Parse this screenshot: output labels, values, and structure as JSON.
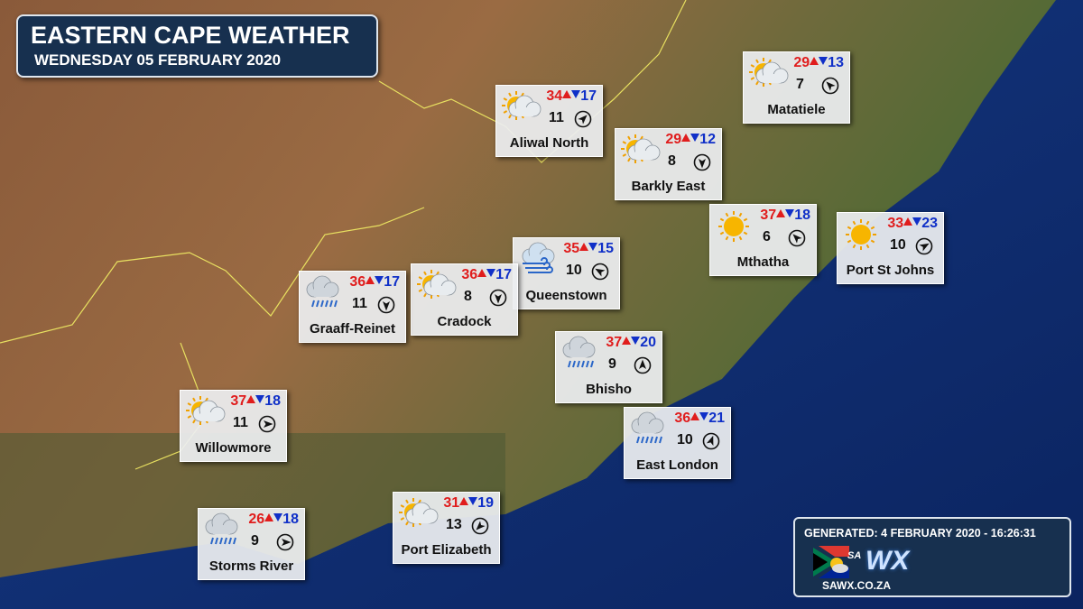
{
  "header": {
    "title": "EASTERN CAPE WEATHER",
    "date": "WEDNESDAY 05 FEBRUARY 2020"
  },
  "cards": [
    {
      "city": "Aliwal North",
      "max": 34,
      "min": 17,
      "wind": 11,
      "icon": "partly-cloudy",
      "wind_dir": 45
    },
    {
      "city": "Matatiele",
      "max": 29,
      "min": 13,
      "wind": 7,
      "icon": "partly-cloudy",
      "wind_dir": 315
    },
    {
      "city": "Barkly East",
      "max": 29,
      "min": 12,
      "wind": 8,
      "icon": "partly-cloudy",
      "wind_dir": 180
    },
    {
      "city": "Mthatha",
      "max": 37,
      "min": 18,
      "wind": 6,
      "icon": "sunny",
      "wind_dir": 315
    },
    {
      "city": "Port St Johns",
      "max": 33,
      "min": 23,
      "wind": 10,
      "icon": "sunny",
      "wind_dir": 60
    },
    {
      "city": "Queenstown",
      "max": 35,
      "min": 15,
      "wind": 10,
      "icon": "windy",
      "wind_dir": 300
    },
    {
      "city": "Cradock",
      "max": 36,
      "min": 17,
      "wind": 8,
      "icon": "partly-cloudy",
      "wind_dir": 180
    },
    {
      "city": "Graaff-Reinet",
      "max": 36,
      "min": 17,
      "wind": 11,
      "icon": "rain",
      "wind_dir": 180
    },
    {
      "city": "Bhisho",
      "max": 37,
      "min": 20,
      "wind": 9,
      "icon": "rain",
      "wind_dir": 0
    },
    {
      "city": "Willowmore",
      "max": 37,
      "min": 18,
      "wind": 11,
      "icon": "partly-cloudy",
      "wind_dir": 90
    },
    {
      "city": "East London",
      "max": 36,
      "min": 21,
      "wind": 10,
      "icon": "rain",
      "wind_dir": 20
    },
    {
      "city": "Port Elizabeth",
      "max": 31,
      "min": 19,
      "wind": 13,
      "icon": "partly-cloudy",
      "wind_dir": 225
    },
    {
      "city": "Storms River",
      "max": 26,
      "min": 18,
      "wind": 9,
      "icon": "rain",
      "wind_dir": 90
    }
  ],
  "footer": {
    "generated": "GENERATED: 4 FEBRUARY 2020 - 16:26:31",
    "logo_sa": "SA",
    "logo_wx": "WX",
    "site": "SAWX.CO.ZA"
  }
}
